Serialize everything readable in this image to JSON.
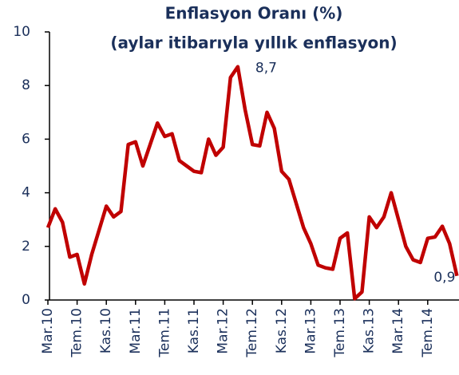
{
  "chart_data": {
    "type": "line",
    "title": "Enflasyon Oranı (%)",
    "subtitle": "(aylar itibarıyla yıllık enflasyon)",
    "x": [
      "Mar.10",
      null,
      null,
      null,
      "Tem.10",
      null,
      null,
      null,
      "Kas.10",
      null,
      null,
      null,
      "Mar.11",
      null,
      null,
      null,
      "Tem.11",
      null,
      null,
      null,
      "Kas.11",
      null,
      null,
      null,
      "Mar.12",
      null,
      null,
      null,
      "Tem.12",
      null,
      null,
      null,
      "Kas.12",
      null,
      null,
      null,
      "Mar.13",
      null,
      null,
      null,
      "Tem.13",
      null,
      null,
      null,
      "Kas.13",
      null,
      null,
      null,
      "Mar.14",
      null,
      null,
      null,
      "Tem.14",
      null,
      null,
      null,
      null
    ],
    "series": [
      {
        "name": "Enflasyon",
        "color": "#c00000",
        "values": [
          2.7,
          3.4,
          2.9,
          1.6,
          1.7,
          0.6,
          1.7,
          2.6,
          3.5,
          3.1,
          3.3,
          5.8,
          5.9,
          5.0,
          5.8,
          6.6,
          6.1,
          6.2,
          5.2,
          5.0,
          4.8,
          4.75,
          6.0,
          5.4,
          5.7,
          8.3,
          8.7,
          7.1,
          5.8,
          5.75,
          7.0,
          6.4,
          4.8,
          4.5,
          3.6,
          2.7,
          2.1,
          1.3,
          1.2,
          1.15,
          2.3,
          2.5,
          0.05,
          0.3,
          3.1,
          2.7,
          3.1,
          4.0,
          3.0,
          2.0,
          1.5,
          1.4,
          2.3,
          2.35,
          2.75,
          2.1,
          0.9
        ],
        "value_labels": [
          null,
          null,
          null,
          null,
          null,
          null,
          null,
          null,
          null,
          null,
          null,
          null,
          null,
          null,
          null,
          null,
          null,
          null,
          null,
          null,
          null,
          null,
          null,
          null,
          null,
          null,
          "8,7",
          null,
          null,
          null,
          null,
          null,
          null,
          null,
          null,
          null,
          null,
          null,
          null,
          null,
          null,
          null,
          null,
          null,
          null,
          null,
          null,
          null,
          null,
          null,
          null,
          null,
          null,
          null,
          null,
          null,
          "0,9"
        ]
      }
    ],
    "ylim": [
      0,
      10
    ],
    "yticks": [
      0,
      2,
      4,
      6,
      8,
      10
    ],
    "grid": false
  }
}
